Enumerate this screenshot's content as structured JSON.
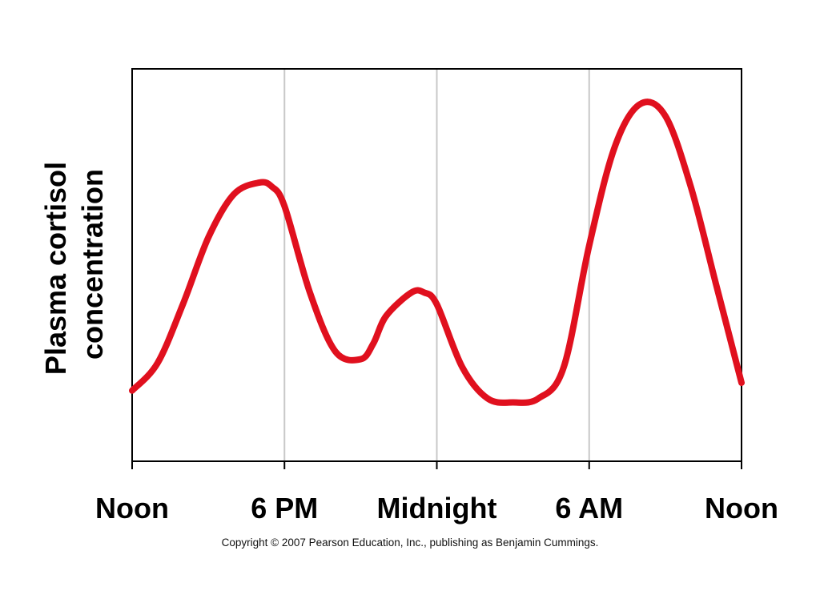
{
  "chart_data": {
    "type": "line",
    "title": "",
    "xlabel": "",
    "ylabel": "Plasma cortisol concentration",
    "ylabel_lines": [
      "Plasma cortisol",
      "concentration"
    ],
    "x_ticks": [
      "Noon",
      "6 PM",
      "Midnight",
      "6 AM",
      "Noon"
    ],
    "x_unit": "hours after noon",
    "xlim": [
      0,
      24
    ],
    "ylim": [
      0,
      100
    ],
    "y_ticks_shown": false,
    "grid": "vertical",
    "series": [
      {
        "color": "#e0101e",
        "x": [
          0,
          1,
          2,
          3,
          4,
          5,
          5.5,
          6,
          7,
          8,
          9,
          9.5,
          10,
          11,
          11.5,
          12,
          13,
          14,
          15,
          16,
          17,
          18,
          19,
          20,
          21,
          22,
          23,
          24
        ],
        "y": [
          18,
          25,
          40,
          57,
          68,
          71,
          70,
          65,
          43,
          28,
          26,
          30,
          37,
          43,
          43,
          40,
          24,
          16,
          15,
          16,
          24,
          55,
          80,
          91,
          88,
          70,
          45,
          20
        ]
      }
    ]
  },
  "copyright": "Copyright © 2007 Pearson Education, Inc., publishing as Benjamin Cummings."
}
